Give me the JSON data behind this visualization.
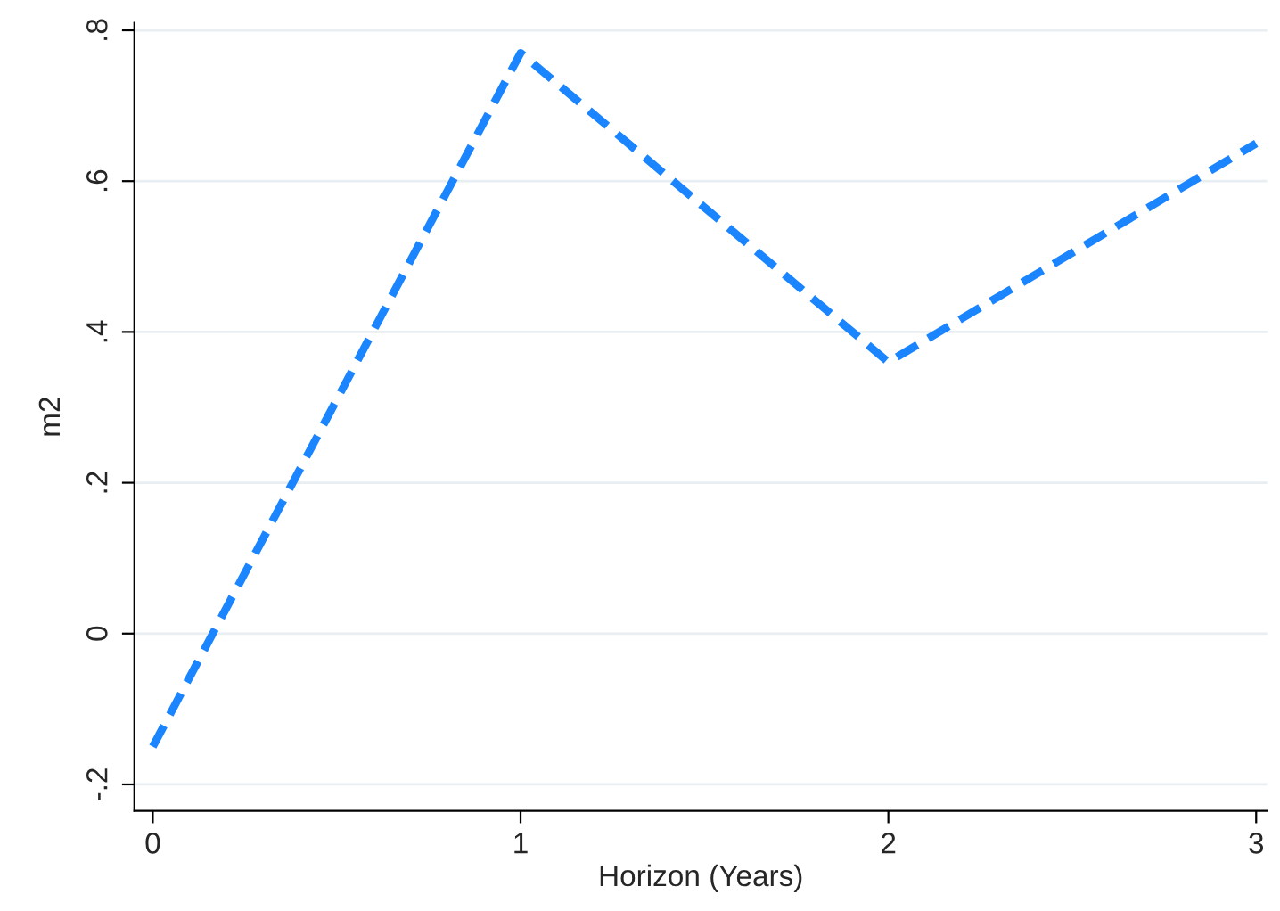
{
  "chart_data": {
    "type": "line",
    "xlabel": "Horizon (Years)",
    "ylabel": "m2",
    "x": [
      0,
      1,
      2,
      3
    ],
    "series": [
      {
        "color": "#1a85ff",
        "values": [
          -0.15,
          0.77,
          0.36,
          0.65
        ]
      }
    ],
    "xlim": [
      -0.05,
      3.03
    ],
    "xticks": [
      0,
      1,
      2,
      3
    ],
    "ylim": [
      -0.235,
      0.81
    ],
    "yticks": [
      {
        "value": -0.2,
        "label": "-.2"
      },
      0,
      {
        "value": 0.2,
        "label": ".2"
      },
      {
        "value": 0.4,
        "label": ".4"
      },
      {
        "value": 0.6,
        "label": ".6"
      },
      {
        "value": 0.8,
        "label": ".8"
      }
    ],
    "grid": "y",
    "line_style": "dashed",
    "marker": "none"
  }
}
